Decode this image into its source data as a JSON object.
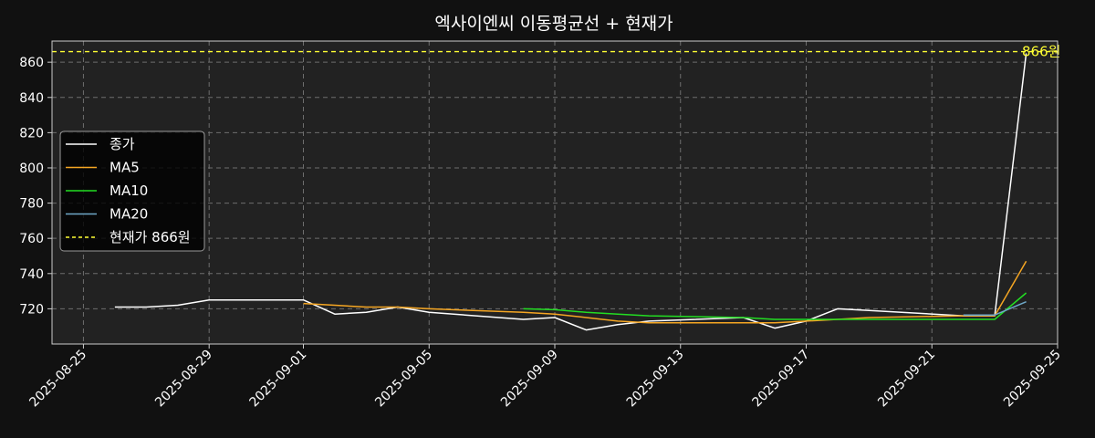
{
  "chart_data": {
    "type": "line",
    "title": "엑사이엔씨 이동평균선 + 현재가",
    "xlabel": "",
    "ylabel": "",
    "xlim": [
      "2025-08-24",
      "2025-09-25"
    ],
    "ylim": [
      700,
      872
    ],
    "grid": true,
    "legend_position": "center-left",
    "x_tick_labels": [
      "2025-08-25",
      "2025-08-29",
      "2025-09-01",
      "2025-09-05",
      "2025-09-09",
      "2025-09-13",
      "2025-09-17",
      "2025-09-21",
      "2025-09-25"
    ],
    "y_tick_values": [
      720,
      740,
      760,
      780,
      800,
      820,
      840,
      860
    ],
    "colors": {
      "background": "#111111",
      "plot_background": "#222222",
      "axis": "#cccccc",
      "grid": "#6e6e6e"
    },
    "series": [
      {
        "name": "종가",
        "color": "#ffffff",
        "x": [
          "2025-08-26",
          "2025-08-27",
          "2025-08-28",
          "2025-08-29",
          "2025-09-01",
          "2025-09-02",
          "2025-09-03",
          "2025-09-04",
          "2025-09-05",
          "2025-09-08",
          "2025-09-09",
          "2025-09-10",
          "2025-09-11",
          "2025-09-12",
          "2025-09-15",
          "2025-09-16",
          "2025-09-17",
          "2025-09-18",
          "2025-09-19",
          "2025-09-22",
          "2025-09-23",
          "2025-09-24"
        ],
        "values": [
          721,
          721,
          722,
          725,
          725,
          717,
          718,
          721,
          718,
          714,
          715,
          708,
          711,
          713,
          715,
          709,
          713,
          720,
          719,
          716,
          716,
          865
        ]
      },
      {
        "name": "MA5",
        "color": "#f5a623",
        "x": [
          "2025-09-01",
          "2025-09-02",
          "2025-09-03",
          "2025-09-04",
          "2025-09-05",
          "2025-09-08",
          "2025-09-09",
          "2025-09-10",
          "2025-09-11",
          "2025-09-12",
          "2025-09-15",
          "2025-09-16",
          "2025-09-17",
          "2025-09-18",
          "2025-09-19",
          "2025-09-22",
          "2025-09-23",
          "2025-09-24"
        ],
        "values": [
          723,
          722,
          721,
          721,
          720,
          718,
          717,
          715,
          713,
          712,
          712,
          712,
          713,
          714,
          715,
          716,
          716,
          747
        ]
      },
      {
        "name": "MA10",
        "color": "#22dd22",
        "x": [
          "2025-09-08",
          "2025-09-09",
          "2025-09-10",
          "2025-09-11",
          "2025-09-12",
          "2025-09-15",
          "2025-09-16",
          "2025-09-17",
          "2025-09-18",
          "2025-09-19",
          "2025-09-22",
          "2025-09-23",
          "2025-09-24"
        ],
        "values": [
          720,
          719.5,
          718,
          717,
          716,
          715,
          714,
          714,
          714,
          714,
          714,
          714,
          729
        ]
      },
      {
        "name": "MA20",
        "color": "#6fa8c8",
        "x": [
          "2025-09-22",
          "2025-09-23",
          "2025-09-24"
        ],
        "values": [
          716.5,
          716.5,
          724
        ]
      }
    ],
    "reference_line": {
      "name": "현재가 866원",
      "value": 866,
      "label": "866원",
      "color": "#ffff33"
    }
  }
}
